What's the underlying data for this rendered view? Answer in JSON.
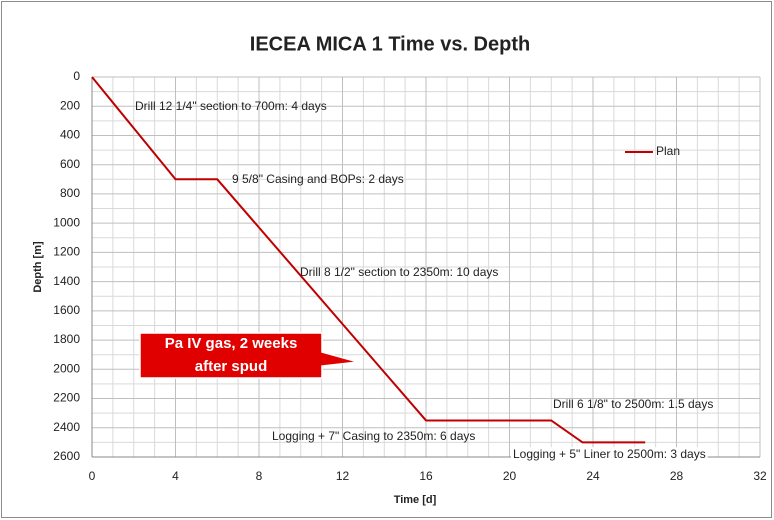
{
  "chart_data": {
    "type": "line",
    "title": "IECEA MICA 1 Time vs. Depth",
    "x_label": "Time [d]",
    "y_label": "Depth [m]",
    "x": [
      0,
      4,
      6,
      16,
      22,
      23.5,
      26.5
    ],
    "series": [
      {
        "name": "Plan",
        "color": "#c00000",
        "values": [
          0,
          700,
          700,
          2350,
          2350,
          2500,
          2500
        ]
      }
    ],
    "xlim": [
      0,
      32
    ],
    "xticks": [
      0,
      4,
      8,
      12,
      16,
      20,
      24,
      28,
      32
    ],
    "xminorticks": [
      1,
      2,
      3,
      5,
      6,
      7,
      9,
      10,
      11,
      13,
      14,
      15,
      17,
      18,
      19,
      21,
      22,
      23,
      25,
      26,
      27,
      29,
      30,
      31
    ],
    "ylim": [
      0,
      2600
    ],
    "y_reversed": true,
    "yticks": [
      0,
      200,
      400,
      600,
      800,
      1000,
      1200,
      1400,
      1600,
      1800,
      2000,
      2200,
      2400,
      2600
    ],
    "yminorticks": [
      100,
      300,
      500,
      700,
      900,
      1100,
      1300,
      1500,
      1700,
      1900,
      2100,
      2300,
      2500
    ],
    "grid": true,
    "legend": "right",
    "annotations": [
      "Drill 12 1/4\" section to 700m: 4 days",
      "9 5/8\" Casing and BOPs: 2 days",
      "Drill 8 1/2\" section to 2350m: 10 days",
      "Logging  + 7\" Casing to 2350m: 6 days",
      "Drill 6 1/8\" to 2500m: 1.5 days",
      "Logging  + 5\" Liner to 2500m: 3 days"
    ],
    "callout": [
      "Pa IV gas,  2 weeks",
      "after spud"
    ]
  }
}
